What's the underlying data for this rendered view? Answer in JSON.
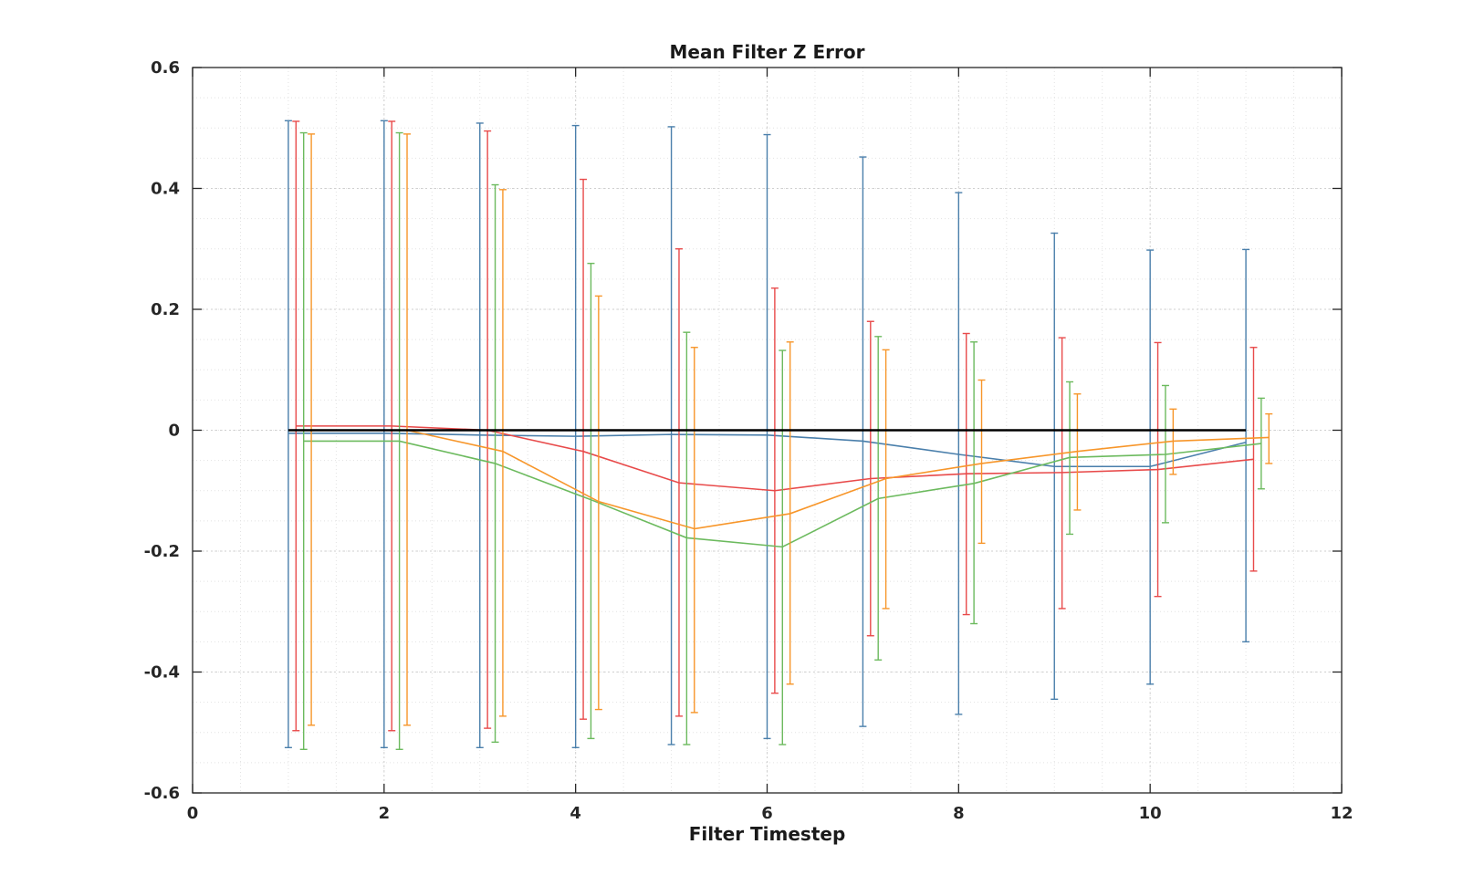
{
  "chart_data": {
    "type": "line",
    "title": "Mean Filter Z Error",
    "xlabel": "Filter Timestep",
    "ylabel": "",
    "xlim": [
      0,
      12
    ],
    "ylim": [
      -0.6,
      0.6
    ],
    "xticks": [
      0,
      2,
      4,
      6,
      8,
      10,
      12
    ],
    "xtick_labels": [
      "0",
      "2",
      "4",
      "6",
      "8",
      "10",
      "12"
    ],
    "yticks": [
      -0.6,
      -0.4,
      -0.2,
      0,
      0.2,
      0.4,
      0.6
    ],
    "ytick_labels": [
      "-0.6",
      "-0.4",
      "-0.2",
      "0",
      "0.2",
      "0.4",
      "0.6"
    ],
    "grid": true,
    "minor_grid": true,
    "reference_line": {
      "y": 0,
      "x_range": [
        1,
        11
      ],
      "color": "#000000"
    },
    "series": [
      {
        "color": "#4a7fab",
        "x": [
          1,
          2,
          3,
          4,
          5,
          6,
          7,
          8,
          9,
          10,
          11
        ],
        "y": [
          -0.005,
          -0.005,
          -0.008,
          -0.01,
          -0.007,
          -0.008,
          -0.018,
          -0.04,
          -0.06,
          -0.06,
          -0.02
        ],
        "err_high": [
          0.512,
          0.512,
          0.508,
          0.504,
          0.502,
          0.489,
          0.452,
          0.393,
          0.326,
          0.298,
          0.299
        ],
        "err_low": [
          -0.525,
          -0.525,
          -0.525,
          -0.525,
          -0.52,
          -0.51,
          -0.49,
          -0.47,
          -0.445,
          -0.42,
          -0.35
        ]
      },
      {
        "color": "#e84a4a",
        "x": [
          1.08,
          2.08,
          3.08,
          4.08,
          5.08,
          6.08,
          7.08,
          8.08,
          9.08,
          10.08,
          11.08
        ],
        "y": [
          0.007,
          0.007,
          0.0,
          -0.035,
          -0.087,
          -0.1,
          -0.08,
          -0.072,
          -0.07,
          -0.065,
          -0.048
        ],
        "err_high": [
          0.511,
          0.511,
          0.495,
          0.415,
          0.3,
          0.235,
          0.18,
          0.16,
          0.153,
          0.145,
          0.137
        ],
        "err_low": [
          -0.497,
          -0.497,
          -0.493,
          -0.478,
          -0.473,
          -0.435,
          -0.34,
          -0.305,
          -0.295,
          -0.275,
          -0.233
        ]
      },
      {
        "color": "#6cba5e",
        "x": [
          1.16,
          2.16,
          3.16,
          4.16,
          5.16,
          6.16,
          7.16,
          8.16,
          9.16,
          10.16,
          11.16
        ],
        "y": [
          -0.018,
          -0.018,
          -0.055,
          -0.115,
          -0.178,
          -0.193,
          -0.113,
          -0.088,
          -0.045,
          -0.04,
          -0.022
        ],
        "err_high": [
          0.492,
          0.492,
          0.406,
          0.276,
          0.162,
          0.132,
          0.155,
          0.146,
          0.08,
          0.074,
          0.053
        ],
        "err_low": [
          -0.528,
          -0.528,
          -0.516,
          -0.51,
          -0.52,
          -0.52,
          -0.38,
          -0.32,
          -0.172,
          -0.153,
          -0.097
        ]
      },
      {
        "color": "#f7962a",
        "x": [
          1.24,
          2.24,
          3.24,
          4.24,
          5.24,
          6.24,
          7.24,
          8.24,
          9.24,
          10.24,
          11.24
        ],
        "y": [
          0.0,
          0.0,
          -0.035,
          -0.118,
          -0.163,
          -0.138,
          -0.08,
          -0.055,
          -0.035,
          -0.018,
          -0.012
        ],
        "err_high": [
          0.49,
          0.49,
          0.398,
          0.222,
          0.137,
          0.146,
          0.133,
          0.083,
          0.06,
          0.035,
          0.027
        ],
        "err_low": [
          -0.488,
          -0.488,
          -0.473,
          -0.462,
          -0.467,
          -0.42,
          -0.295,
          -0.187,
          -0.132,
          -0.073,
          -0.055
        ]
      }
    ]
  }
}
